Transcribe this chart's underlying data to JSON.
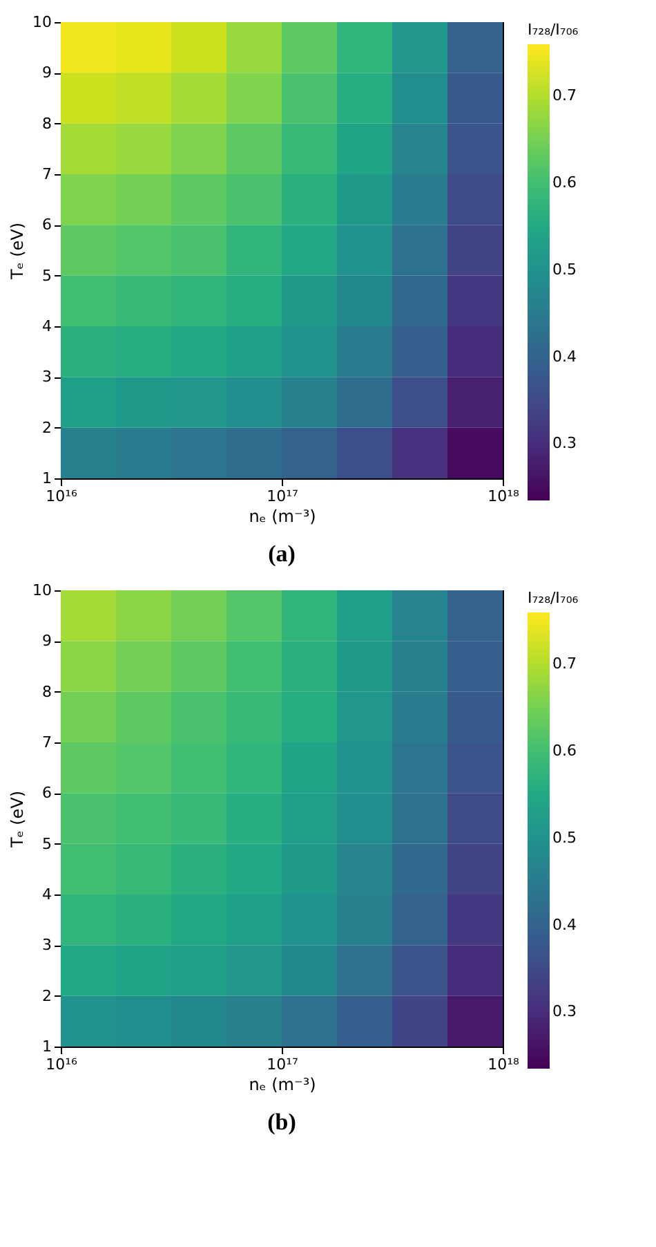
{
  "chart_data": [
    {
      "type": "heatmap",
      "title": "(a)",
      "xlabel": "nₑ (m⁻³)",
      "ylabel": "Tₑ (eV)",
      "clabel": "I₇₂₈/I₇₀₆",
      "log": "x",
      "grid": false,
      "xlim": [
        1e+16,
        1e+18
      ],
      "xticks": [
        {
          "value": 1e+16,
          "label": "10¹⁶"
        },
        {
          "value": 1e+17,
          "label": "10¹⁷"
        },
        {
          "value": 1e+18,
          "label": "10¹⁸"
        }
      ],
      "ylim": [
        1,
        10
      ],
      "yticks": [
        1,
        2,
        3,
        4,
        5,
        6,
        7,
        8,
        9,
        10
      ],
      "clim": [
        0.235,
        0.76
      ],
      "cticks": [
        0.3,
        0.4,
        0.5,
        0.6,
        0.7
      ],
      "cells": [
        [
          0.75,
          0.74,
          0.72,
          0.68,
          0.63,
          0.58,
          0.51,
          0.4
        ],
        [
          0.72,
          0.71,
          0.69,
          0.66,
          0.61,
          0.56,
          0.49,
          0.38
        ],
        [
          0.69,
          0.68,
          0.66,
          0.63,
          0.59,
          0.54,
          0.47,
          0.37
        ],
        [
          0.66,
          0.65,
          0.63,
          0.61,
          0.57,
          0.52,
          0.45,
          0.35
        ],
        [
          0.63,
          0.62,
          0.61,
          0.58,
          0.55,
          0.5,
          0.43,
          0.34
        ],
        [
          0.6,
          0.59,
          0.58,
          0.56,
          0.52,
          0.48,
          0.41,
          0.32
        ],
        [
          0.57,
          0.56,
          0.55,
          0.53,
          0.5,
          0.45,
          0.39,
          0.3
        ],
        [
          0.53,
          0.52,
          0.51,
          0.49,
          0.46,
          0.42,
          0.36,
          0.28
        ],
        [
          0.46,
          0.45,
          0.44,
          0.42,
          0.4,
          0.36,
          0.31,
          0.25
        ]
      ]
    },
    {
      "type": "heatmap",
      "title": "(b)",
      "xlabel": "nₑ (m⁻³)",
      "ylabel": "Tₑ (eV)",
      "clabel": "I₇₂₈/I₇₀₆",
      "log": "x",
      "grid": false,
      "xlim": [
        1e+16,
        1e+18
      ],
      "xticks": [
        {
          "value": 1e+16,
          "label": "10¹⁶"
        },
        {
          "value": 1e+17,
          "label": "10¹⁷"
        },
        {
          "value": 1e+18,
          "label": "10¹⁸"
        }
      ],
      "ylim": [
        1,
        10
      ],
      "yticks": [
        1,
        2,
        3,
        4,
        5,
        6,
        7,
        8,
        9,
        10
      ],
      "clim": [
        0.235,
        0.76
      ],
      "cticks": [
        0.3,
        0.4,
        0.5,
        0.6,
        0.7
      ],
      "cells": [
        [
          0.69,
          0.67,
          0.65,
          0.62,
          0.58,
          0.53,
          0.47,
          0.4
        ],
        [
          0.67,
          0.65,
          0.63,
          0.6,
          0.57,
          0.52,
          0.46,
          0.39
        ],
        [
          0.65,
          0.63,
          0.61,
          0.59,
          0.56,
          0.51,
          0.45,
          0.38
        ],
        [
          0.63,
          0.62,
          0.6,
          0.58,
          0.54,
          0.5,
          0.44,
          0.37
        ],
        [
          0.61,
          0.6,
          0.59,
          0.56,
          0.53,
          0.49,
          0.43,
          0.35
        ],
        [
          0.6,
          0.59,
          0.57,
          0.55,
          0.52,
          0.47,
          0.41,
          0.34
        ],
        [
          0.58,
          0.57,
          0.55,
          0.53,
          0.5,
          0.46,
          0.4,
          0.32
        ],
        [
          0.55,
          0.54,
          0.53,
          0.51,
          0.48,
          0.43,
          0.37,
          0.3
        ],
        [
          0.5,
          0.49,
          0.48,
          0.46,
          0.43,
          0.39,
          0.34,
          0.27
        ]
      ]
    }
  ]
}
